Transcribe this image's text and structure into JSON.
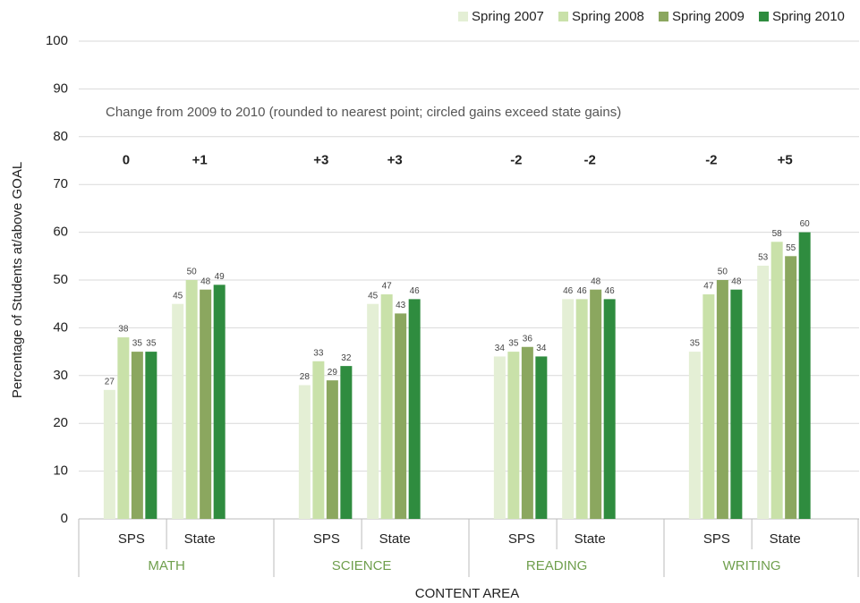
{
  "chart_data": {
    "type": "bar",
    "categories": [
      "SPS",
      "State",
      "SPS",
      "State",
      "SPS",
      "State",
      "SPS",
      "State"
    ],
    "groups": [
      "MATH",
      "SCIENCE",
      "READING",
      "WRITING"
    ],
    "series": [
      {
        "name": "Spring 2007",
        "color": "#e4efd5",
        "values": [
          27,
          45,
          28,
          45,
          34,
          46,
          35,
          53
        ]
      },
      {
        "name": "Spring 2008",
        "color": "#c9e1a9",
        "values": [
          38,
          50,
          33,
          47,
          35,
          46,
          47,
          58
        ]
      },
      {
        "name": "Spring 2009",
        "color": "#8ba75f",
        "values": [
          35,
          48,
          29,
          43,
          36,
          48,
          50,
          55
        ]
      },
      {
        "name": "Spring 2010",
        "color": "#2f8c3f",
        "values": [
          35,
          49,
          32,
          46,
          34,
          46,
          48,
          60
        ]
      }
    ],
    "annotation": "Change from 2009 to 2010 (rounded to nearest point; circled gains exceed state gains)",
    "changes": [
      "0",
      "+1",
      "+3",
      "+3",
      "-2",
      "-2",
      "-2",
      "+5"
    ],
    "xlabel": "CONTENT AREA",
    "ylabel": "Percentage of Students at/above GOAL",
    "ylim": [
      0,
      100
    ],
    "yticks": [
      0,
      10,
      20,
      30,
      40,
      50,
      60,
      70,
      80,
      90,
      100
    ],
    "grid": true,
    "legend": "top-right"
  }
}
